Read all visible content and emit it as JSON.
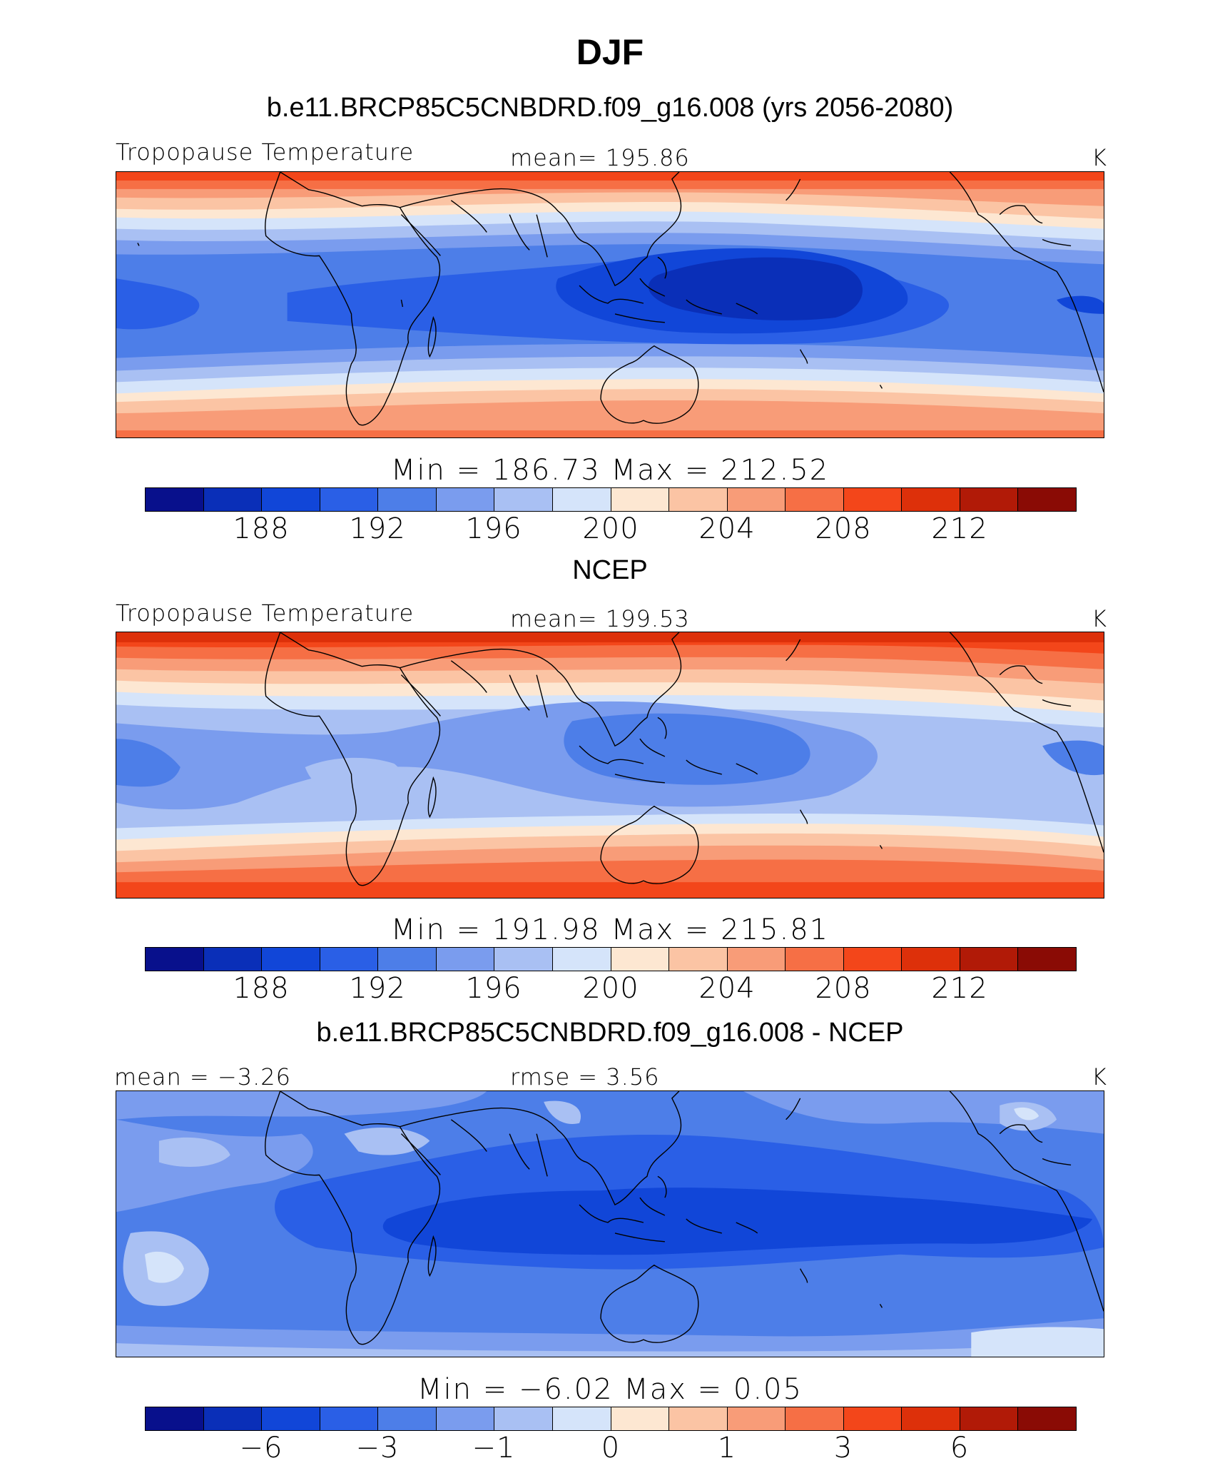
{
  "title": "DJF",
  "colors": [
    "#08108c",
    "#0a2fb8",
    "#1146d8",
    "#2a5fe6",
    "#4d7ee8",
    "#7a9cee",
    "#a9c0f3",
    "#d5e4fa",
    "#fde7d2",
    "#fbc4a4",
    "#f89c78",
    "#f66f45",
    "#f3461a",
    "#dd300a",
    "#b11a07",
    "#8a0b05"
  ],
  "panels": [
    {
      "title": "b.e11.BRCP85C5CNBDRD.f09_g16.008 (yrs 2056-2080)",
      "left_label": "Tropopause  Temperature",
      "center_label": "mean=  195.86",
      "unit": "K",
      "minmax": "Min  =  186.73  Max  =  212.52",
      "ticks": [
        "188",
        "192",
        "196",
        "200",
        "204",
        "208",
        "212"
      ]
    },
    {
      "title": "NCEP",
      "left_label": "Tropopause  Temperature",
      "center_label": "mean=  199.53",
      "unit": "K",
      "minmax": "Min  =  191.98  Max  =  215.81",
      "ticks": [
        "188",
        "192",
        "196",
        "200",
        "204",
        "208",
        "212"
      ]
    },
    {
      "title": "b.e11.BRCP85C5CNBDRD.f09_g16.008 - NCEP",
      "left_label": "mean  =    −3.26",
      "center_label": "rmse  =     3.56",
      "unit": "K",
      "minmax": "Min  =    −6.02  Max  =     0.05",
      "ticks": [
        "−6",
        "−3",
        "−1",
        "0",
        "1",
        "3",
        "6"
      ]
    }
  ]
}
